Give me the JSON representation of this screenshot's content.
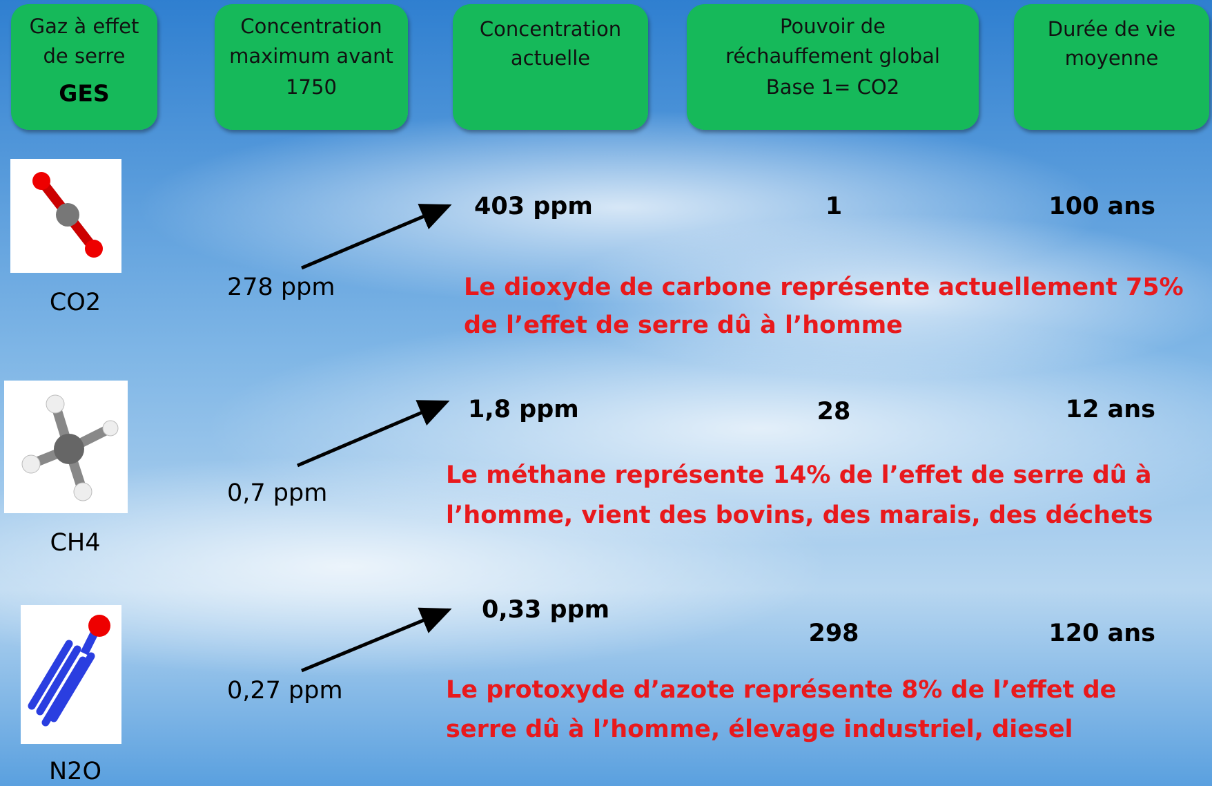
{
  "headers": [
    [
      "Gaz à effet",
      "de serre",
      "GES"
    ],
    [
      "Concentration",
      "maximum avant",
      "1750"
    ],
    [
      "Concentration",
      "actuelle"
    ],
    [
      "Pouvoir de",
      "réchauffement global",
      "Base 1= CO2"
    ],
    [
      "Durée de vie",
      "moyenne"
    ]
  ],
  "rows": [
    {
      "gas": "CO2",
      "before": "278 ppm",
      "current": "403 ppm",
      "gwp": 1,
      "lifetime": "100 ans",
      "note": [
        "Le dioxyde de carbone représente actuellement 75%",
        "de l’effet de serre dû à l’homme"
      ]
    },
    {
      "gas": "CH4",
      "before": "0,7 ppm",
      "current": "1,8 ppm",
      "gwp": 28,
      "lifetime": "12 ans",
      "note": [
        "Le méthane représente 14% de l’effet de serre dû à",
        "l’homme, vient des bovins, des marais, des déchets"
      ]
    },
    {
      "gas": "N2O",
      "before": "0,27 ppm",
      "current": "0,33 ppm",
      "gwp": 298,
      "lifetime": "120 ans",
      "note": [
        "Le protoxyde d’azote représente 8% de l’effet de",
        "serre dû à l’homme, élevage industriel, diesel"
      ]
    }
  ]
}
